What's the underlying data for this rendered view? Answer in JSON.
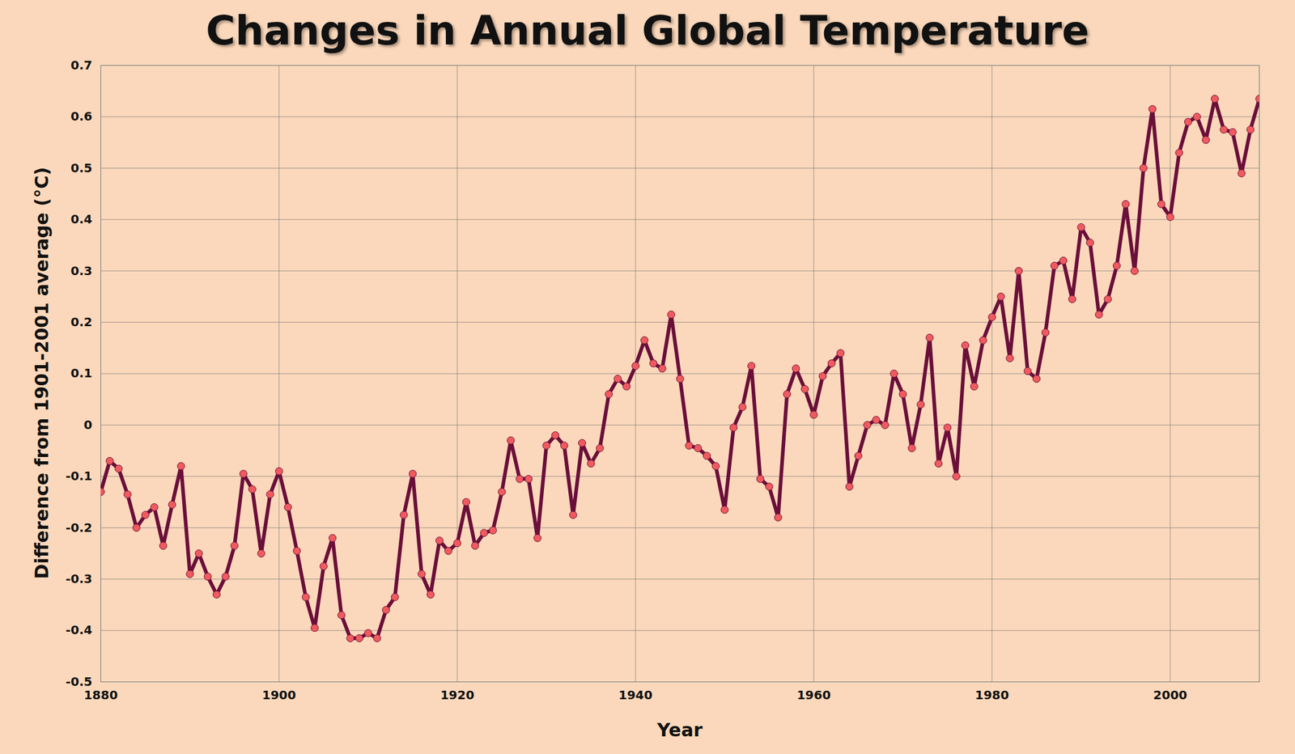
{
  "chart_data": {
    "type": "line",
    "title": "Changes in Annual Global Temperature",
    "x_label": "Year",
    "y_label": "Difference from 1901-2001 average (°C)",
    "x": [
      1880,
      1881,
      1882,
      1883,
      1884,
      1885,
      1886,
      1887,
      1888,
      1889,
      1890,
      1891,
      1892,
      1893,
      1894,
      1895,
      1896,
      1897,
      1898,
      1899,
      1900,
      1901,
      1902,
      1903,
      1904,
      1905,
      1906,
      1907,
      1908,
      1909,
      1910,
      1911,
      1912,
      1913,
      1914,
      1915,
      1916,
      1917,
      1918,
      1919,
      1920,
      1921,
      1922,
      1923,
      1924,
      1925,
      1926,
      1927,
      1928,
      1929,
      1930,
      1931,
      1932,
      1933,
      1934,
      1935,
      1936,
      1937,
      1938,
      1939,
      1940,
      1941,
      1942,
      1943,
      1944,
      1945,
      1946,
      1947,
      1948,
      1949,
      1950,
      1951,
      1952,
      1953,
      1954,
      1955,
      1956,
      1957,
      1958,
      1959,
      1960,
      1961,
      1962,
      1963,
      1964,
      1965,
      1966,
      1967,
      1968,
      1969,
      1970,
      1971,
      1972,
      1973,
      1974,
      1975,
      1976,
      1977,
      1978,
      1979,
      1980,
      1981,
      1982,
      1983,
      1984,
      1985,
      1986,
      1987,
      1988,
      1989,
      1990,
      1991,
      1992,
      1993,
      1994,
      1995,
      1996,
      1997,
      1998,
      1999,
      2000,
      2001,
      2002,
      2003,
      2004,
      2005,
      2006,
      2007,
      2008,
      2009,
      2010
    ],
    "values": [
      -0.13,
      -0.07,
      -0.085,
      -0.135,
      -0.2,
      -0.175,
      -0.16,
      -0.235,
      -0.155,
      -0.08,
      -0.29,
      -0.25,
      -0.295,
      -0.33,
      -0.295,
      -0.235,
      -0.095,
      -0.125,
      -0.25,
      -0.135,
      -0.09,
      -0.16,
      -0.245,
      -0.335,
      -0.395,
      -0.275,
      -0.22,
      -0.37,
      -0.415,
      -0.415,
      -0.405,
      -0.415,
      -0.36,
      -0.335,
      -0.175,
      -0.095,
      -0.29,
      -0.33,
      -0.225,
      -0.245,
      -0.23,
      -0.15,
      -0.235,
      -0.21,
      -0.205,
      -0.13,
      -0.03,
      -0.105,
      -0.105,
      -0.22,
      -0.04,
      -0.02,
      -0.04,
      -0.175,
      -0.035,
      -0.075,
      -0.045,
      0.06,
      0.09,
      0.075,
      0.115,
      0.165,
      0.12,
      0.11,
      0.215,
      0.09,
      -0.04,
      -0.045,
      -0.06,
      -0.08,
      -0.165,
      -0.005,
      0.035,
      0.115,
      -0.105,
      -0.12,
      -0.18,
      0.06,
      0.11,
      0.07,
      0.02,
      0.095,
      0.12,
      0.14,
      -0.12,
      -0.06,
      0.0,
      0.01,
      0.0,
      0.1,
      0.06,
      -0.045,
      0.04,
      0.17,
      -0.075,
      -0.005,
      -0.1,
      0.155,
      0.075,
      0.165,
      0.21,
      0.25,
      0.13,
      0.3,
      0.105,
      0.09,
      0.18,
      0.31,
      0.32,
      0.245,
      0.385,
      0.355,
      0.215,
      0.245,
      0.31,
      0.43,
      0.3,
      0.5,
      0.615,
      0.43,
      0.405,
      0.53,
      0.59,
      0.6,
      0.555,
      0.635,
      0.575,
      0.57,
      0.49,
      0.575,
      0.635
    ],
    "color": "#6b0f3a",
    "marker": "circle",
    "xlim": [
      1880,
      2010
    ],
    "xticks": [
      1880,
      1900,
      1920,
      1940,
      1960,
      1980,
      2000
    ],
    "ylim": [
      -0.5,
      0.7
    ],
    "yticks": [
      -0.5,
      -0.4,
      -0.3,
      -0.2,
      -0.1,
      0,
      0.1,
      0.2,
      0.3,
      0.4,
      0.5,
      0.6,
      0.7
    ],
    "grid": true
  }
}
